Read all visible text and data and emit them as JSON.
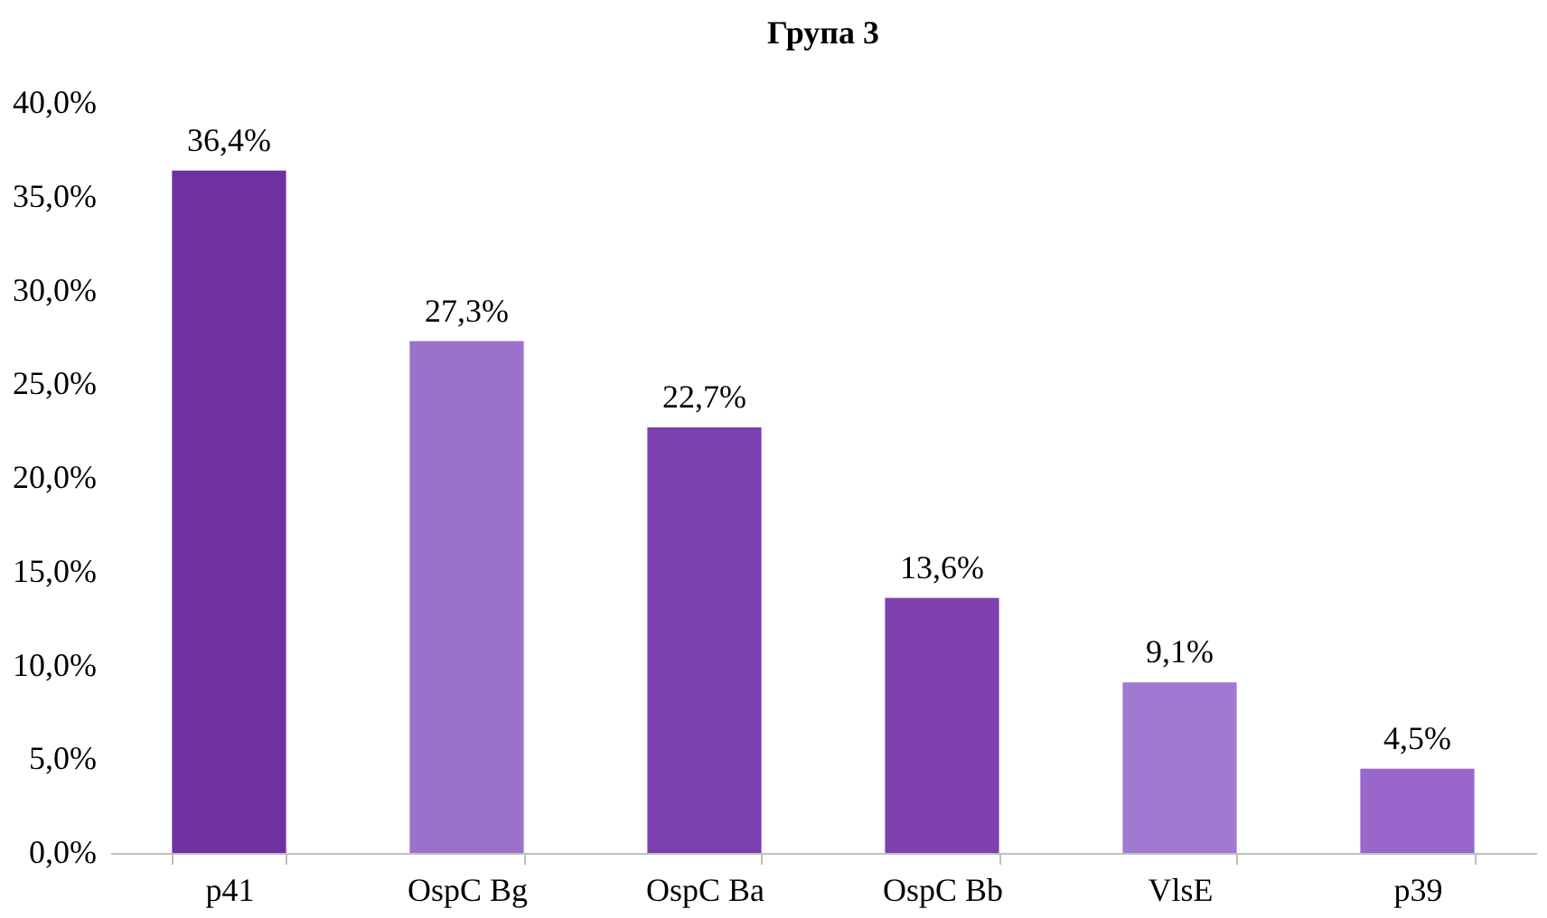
{
  "chart_data": {
    "type": "bar",
    "title": "Група 3",
    "categories": [
      "p41",
      "OspC Bg",
      "OspC Ba",
      "OspC Bb",
      "VlsE",
      "p39"
    ],
    "values": [
      36.4,
      27.3,
      22.7,
      13.6,
      9.1,
      4.5
    ],
    "value_labels": [
      "36,4%",
      "27,3%",
      "22,7%",
      "13,6%",
      "9,1%",
      "4,5%"
    ],
    "colors": [
      "#7030a0",
      "#9b72cb",
      "#7b3fb0",
      "#8040b0",
      "#a07ad0",
      "#9966cc"
    ],
    "ylim": [
      0,
      40
    ],
    "yticks": [
      {
        "value": 0,
        "label": "0,0%"
      },
      {
        "value": 5,
        "label": "5,0%"
      },
      {
        "value": 10,
        "label": "10,0%"
      },
      {
        "value": 15,
        "label": "15,0%"
      },
      {
        "value": 20,
        "label": "20,0%"
      },
      {
        "value": 25,
        "label": "25,0%"
      },
      {
        "value": 30,
        "label": "30,0%"
      },
      {
        "value": 35,
        "label": "35,0%"
      },
      {
        "value": 40,
        "label": "40,0%"
      }
    ],
    "grid": false,
    "legend": false
  }
}
